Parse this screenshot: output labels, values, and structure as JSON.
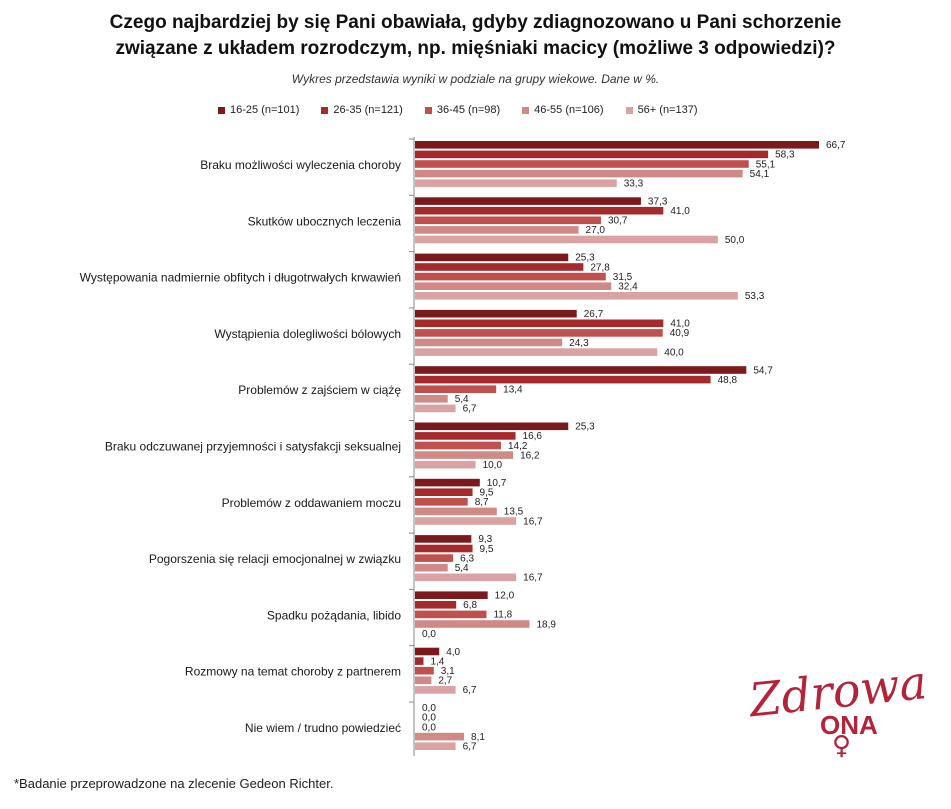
{
  "title_lines": [
    "Czego najbardziej by się Pani obawiała, gdyby zdiagnozowano u Pani schorzenie",
    "związane z układem rozrodczym, np. mięśniaki  macicy (możliwe 3 odpowiedzi)?"
  ],
  "subtitle": "Wykres przedstawia wyniki w podziale na grupy wiekowe. Dane w %.",
  "footnote": "*Badanie przeprowadzone na zlecenie Gedeon Richter.",
  "logo": {
    "text_script": "Zdrowa",
    "text_block": "ONA",
    "symbol": "♀"
  },
  "colors": {
    "series": [
      "#7b1a1c",
      "#a52a2b",
      "#c0504d",
      "#cf8a87",
      "#d9a3a3"
    ],
    "logo": "#b4233a"
  },
  "chart_data": {
    "type": "bar",
    "orientation": "horizontal",
    "xlim": [
      0,
      70
    ],
    "grid": false,
    "legend_placement": "top",
    "categories": [
      "Braku możliwości wyleczenia choroby",
      "Skutków ubocznych leczenia",
      "Występowania nadmiernie obfitych i długotrwałych krwawień",
      "Wystąpienia dolegliwości bólowych",
      "Problemów z zajściem w ciążę",
      "Braku odczuwanej przyjemności i satysfakcji seksualnej",
      "Problemów z oddawaniem moczu",
      "Pogorszenia się relacji emocjonalnej w związku",
      "Spadku pożądania, libido",
      "Rozmowy na temat choroby z partnerem",
      "Nie wiem / trudno powiedzieć"
    ],
    "series": [
      {
        "name": "16-25 (n=101)",
        "values": [
          66.7,
          37.3,
          25.3,
          26.7,
          54.7,
          25.3,
          10.7,
          9.3,
          12.0,
          4.0,
          0.0
        ],
        "labels": [
          "66,7",
          "37,3",
          "25,3",
          "26,7",
          "54,7",
          "25,3",
          "10,7",
          "9,3",
          "12,0",
          "4,0",
          "0,0"
        ]
      },
      {
        "name": "26-35 (n=121)",
        "values": [
          58.3,
          41.0,
          27.8,
          41.0,
          48.8,
          16.6,
          9.5,
          9.5,
          6.8,
          1.4,
          0.0
        ],
        "labels": [
          "58,3",
          "41,0",
          "27,8",
          "41,0",
          "48,8",
          "16,6",
          "9,5",
          "9,5",
          "6,8",
          "1,4",
          "0,0"
        ]
      },
      {
        "name": "36-45 (n=98)",
        "values": [
          55.1,
          30.7,
          31.5,
          40.9,
          13.4,
          14.2,
          8.7,
          6.3,
          11.8,
          3.1,
          0.0
        ],
        "labels": [
          "55,1",
          "30,7",
          "31,5",
          "40,9",
          "13,4",
          "14,2",
          "8,7",
          "6,3",
          "11,8",
          "3,1",
          "0,0"
        ]
      },
      {
        "name": "46-55 (n=106)",
        "values": [
          54.1,
          27.0,
          32.4,
          24.3,
          5.4,
          16.2,
          13.5,
          5.4,
          18.9,
          2.7,
          8.1
        ],
        "labels": [
          "54,1",
          "27,0",
          "32,4",
          "24,3",
          "5,4",
          "16,2",
          "13,5",
          "5,4",
          "18,9",
          "2,7",
          "8,1"
        ]
      },
      {
        "name": "56+ (n=137)",
        "values": [
          33.3,
          50.0,
          53.3,
          40.0,
          6.7,
          10.0,
          16.7,
          16.7,
          0.0,
          6.7,
          6.7
        ],
        "labels": [
          "33,3",
          "50,0",
          "53,3",
          "40,0",
          "6,7",
          "10,0",
          "16,7",
          "16,7",
          "0,0",
          "6,7",
          "6,7"
        ]
      }
    ]
  }
}
